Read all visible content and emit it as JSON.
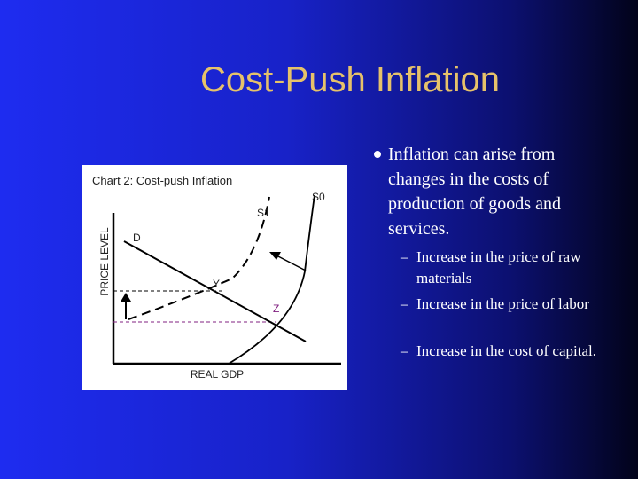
{
  "title": "Cost-Push Inflation",
  "diagram": {
    "title": "Chart 2: Cost-push Inflation",
    "y_axis_label": "PRICE LEVEL",
    "x_axis_label": "REAL GDP",
    "labels": {
      "demand": "D",
      "supply_new": "S1",
      "supply_old": "S0",
      "point_new": "Y",
      "point_old": "Z"
    }
  },
  "bullets": [
    {
      "text": "Inflation can arise from changes in the costs of production of goods and services.",
      "subitems": [
        "Increase in the price of raw materials",
        "Increase in the price of labor",
        "Increase in the cost of capital."
      ]
    }
  ]
}
